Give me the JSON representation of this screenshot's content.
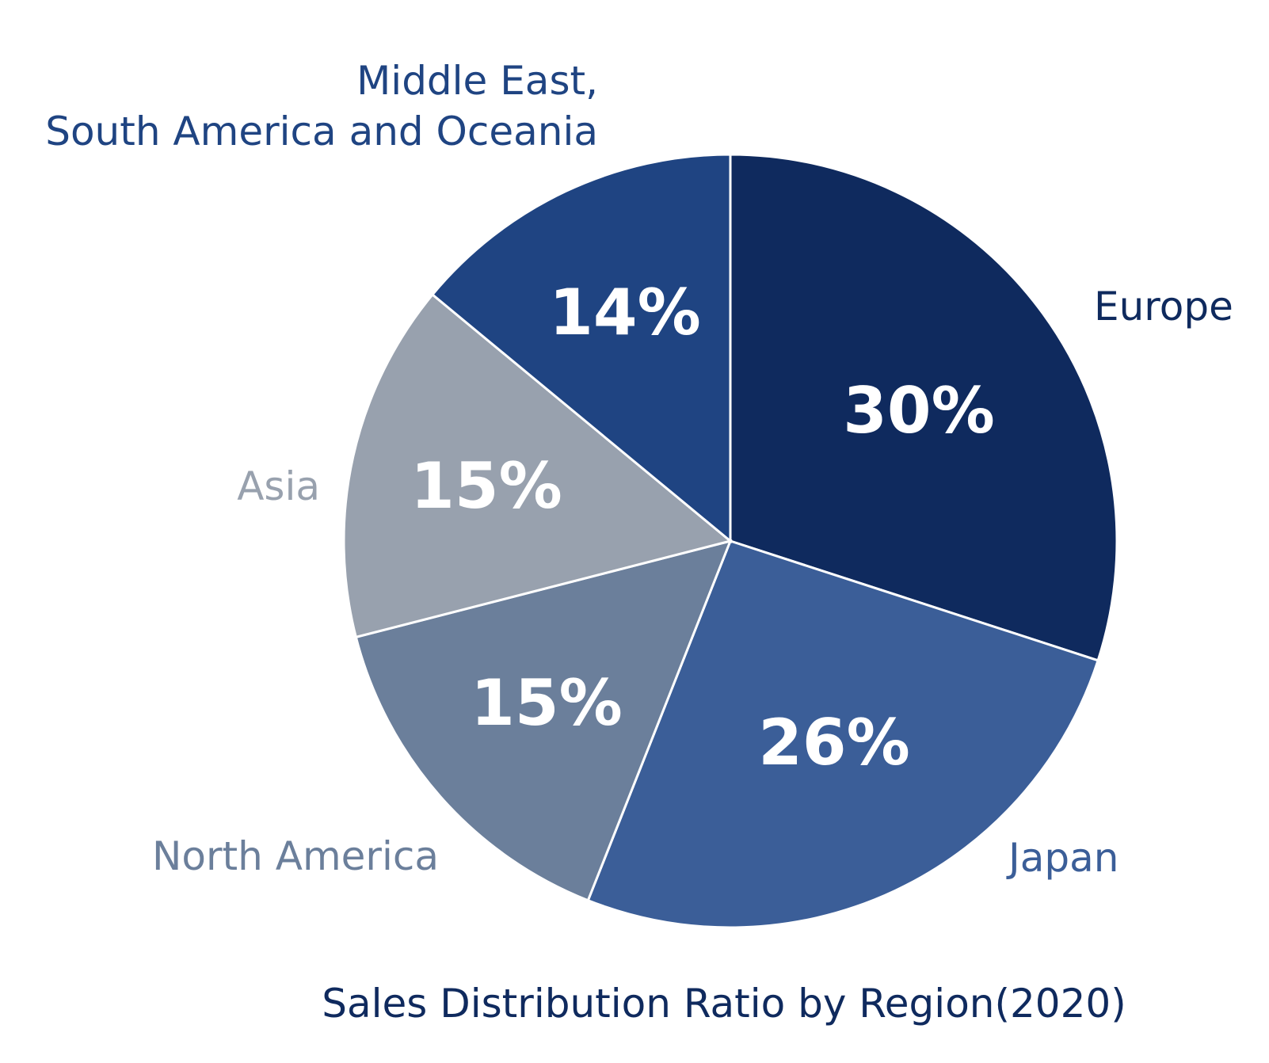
{
  "chart_data": {
    "type": "pie",
    "title": "Sales Distribution Ratio by Region(2020)",
    "categories": [
      "Europe",
      "Japan",
      "North America",
      "Asia",
      "Middle East,\nSouth America and Oceania"
    ],
    "values": [
      30,
      26,
      15,
      15,
      14
    ],
    "value_labels": [
      "30%",
      "26%",
      "15%",
      "15%",
      "14%"
    ],
    "colors": [
      "#0f2a5e",
      "#3b5e98",
      "#6b7f9b",
      "#98a1ae",
      "#1f4482"
    ]
  }
}
